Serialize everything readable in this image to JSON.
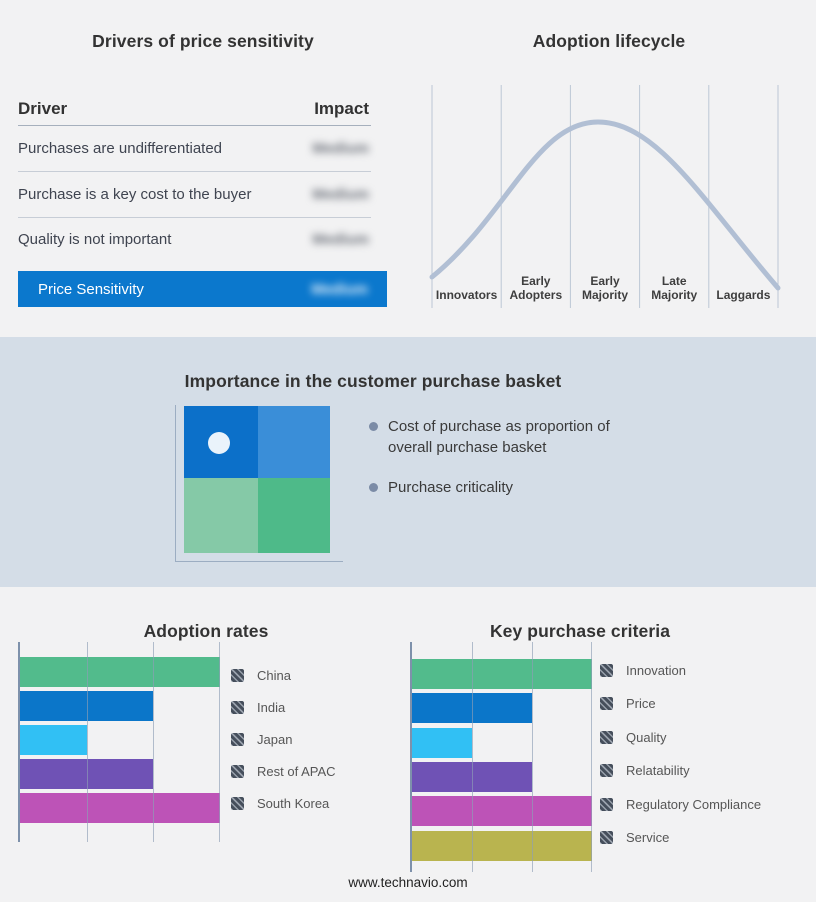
{
  "drivers_panel": {
    "title": "Drivers of price sensitivity",
    "table": {
      "headers": {
        "driver": "Driver",
        "impact": "Impact"
      },
      "rows": [
        {
          "driver": "Purchases are undifferentiated",
          "impact": "Medium"
        },
        {
          "driver": "Purchase is a key cost to the buyer",
          "impact": "Medium"
        },
        {
          "driver": "Quality is not important",
          "impact": "Medium"
        }
      ],
      "highlight_row": {
        "driver": "Price Sensitivity",
        "impact": "Medium"
      },
      "highlight_color": "#0b78cd"
    }
  },
  "lifecycle_panel": {
    "title": "Adoption lifecycle",
    "stages": [
      "Innovators",
      "Early Adopters",
      "Early Majority",
      "Late Majority",
      "Laggards"
    ],
    "curve_color": "#b1bfd4",
    "gridline_color": "#bcc7d5"
  },
  "basket_panel": {
    "title": "Importance in the customer purchase basket",
    "bullets": [
      "Cost of purchase as proportion of overall purchase basket",
      "Purchase criticality"
    ],
    "quadrant_colors": {
      "top_left": "#0c70c9",
      "top_right": "#3a8ed8",
      "bottom_left": "#85c9a7",
      "bottom_right": "#4eba89"
    },
    "band_background": "#d4dde7"
  },
  "chart_data": [
    {
      "type": "bar",
      "orientation": "horizontal",
      "title": "Adoption rates",
      "categories": [
        "China",
        "India",
        "Japan",
        "Rest of APAC",
        "South Korea"
      ],
      "values": [
        3,
        2,
        1,
        2,
        3
      ],
      "xlim": [
        0,
        3
      ],
      "grid": true,
      "legend_position": "right",
      "colors": [
        "#52bb8c",
        "#0b76c9",
        "#31c0f4",
        "#6f52b5",
        "#bd53b7"
      ]
    },
    {
      "type": "bar",
      "orientation": "horizontal",
      "title": "Key purchase criteria",
      "categories": [
        "Innovation",
        "Price",
        "Quality",
        "Relatability",
        "Regulatory Compliance",
        "Service"
      ],
      "values": [
        3,
        2,
        1,
        2,
        3,
        3
      ],
      "xlim": [
        0,
        3
      ],
      "grid": true,
      "legend_position": "right",
      "colors": [
        "#52bb8c",
        "#0b76c9",
        "#31c0f4",
        "#6f52b5",
        "#bd53b7",
        "#b9b44f"
      ]
    }
  ],
  "footer": {
    "url": "www.technavio.com"
  }
}
